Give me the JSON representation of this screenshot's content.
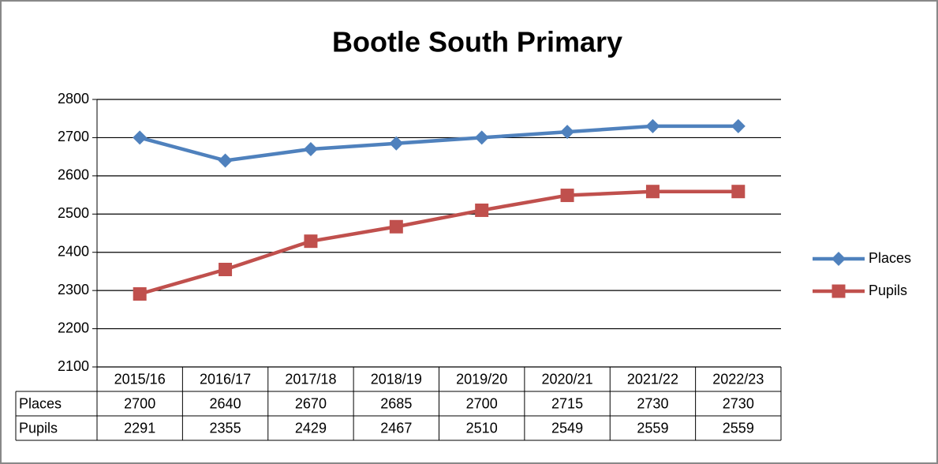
{
  "chart_data": {
    "type": "line",
    "title": "Bootle South Primary",
    "categories": [
      "2015/16",
      "2016/17",
      "2017/18",
      "2018/19",
      "2019/20",
      "2020/21",
      "2021/22",
      "2022/23"
    ],
    "series": [
      {
        "name": "Places",
        "color": "#4f81bd",
        "marker": "diamond",
        "values": [
          2700,
          2640,
          2670,
          2685,
          2700,
          2715,
          2730,
          2730
        ]
      },
      {
        "name": "Pupils",
        "color": "#c0504d",
        "marker": "square",
        "values": [
          2291,
          2355,
          2429,
          2467,
          2510,
          2549,
          2559,
          2559
        ]
      }
    ],
    "ylim": [
      2100,
      2800
    ],
    "yticks": [
      2100,
      2200,
      2300,
      2400,
      2500,
      2600,
      2700,
      2800
    ],
    "grid": true,
    "legend": "right",
    "data_table": true
  }
}
